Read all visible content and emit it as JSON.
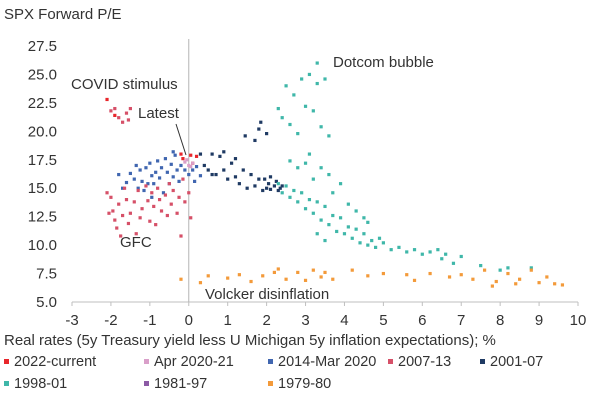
{
  "chart_data": {
    "type": "scatter",
    "title": "SPX Forward P/E",
    "xlabel": "Real rates (5y Treasury yield less U Michigan 5y inflation expectations); %",
    "ylabel": "",
    "xlim": [
      -3,
      10
    ],
    "ylim": [
      5.0,
      27.5
    ],
    "x_ticks": [
      "-3",
      "-2",
      "-1",
      "0",
      "1",
      "2",
      "3",
      "4",
      "5",
      "6",
      "7",
      "8",
      "9",
      "10"
    ],
    "y_ticks": [
      "5.0",
      "7.5",
      "10.0",
      "12.5",
      "15.0",
      "17.5",
      "20.0",
      "22.5",
      "25.0",
      "27.5"
    ],
    "grid": false,
    "legend_position": "bottom",
    "annotations": {
      "dotcom": "Dotcom bubble",
      "covid": "COVID stimulus",
      "latest": "Latest",
      "gfc": "GFC",
      "volcker": "Volcker disinflation"
    },
    "series": [
      {
        "name": "2022-current",
        "color": "#e8262b",
        "values": [
          [
            -2.1,
            22.8
          ],
          [
            -1.9,
            21.4
          ],
          [
            -0.2,
            18.0
          ],
          [
            -0.15,
            17.6
          ],
          [
            0.05,
            17.9
          ],
          [
            0.1,
            17.2
          ],
          [
            0.2,
            17.8
          ]
        ]
      },
      {
        "name": "Apr 2020-21",
        "color": "#d99fc9",
        "values": [
          [
            0.0,
            17.0
          ],
          [
            -0.1,
            17.3
          ],
          [
            0.05,
            16.9
          ],
          [
            -0.05,
            17.5
          ],
          [
            0.1,
            17.2
          ]
        ]
      },
      {
        "name": "2014-Mar 2020",
        "color": "#4066b0",
        "values": [
          [
            -1.6,
            15.5
          ],
          [
            -1.5,
            16.3
          ],
          [
            -1.4,
            15.8
          ],
          [
            -1.35,
            17.0
          ],
          [
            -1.3,
            15.0
          ],
          [
            -1.25,
            16.6
          ],
          [
            -1.2,
            15.6
          ],
          [
            -1.1,
            16.8
          ],
          [
            -1.05,
            15.4
          ],
          [
            -1.0,
            17.2
          ],
          [
            -0.95,
            16.1
          ],
          [
            -0.9,
            15.4
          ],
          [
            -0.85,
            16.4
          ],
          [
            -0.8,
            17.4
          ],
          [
            -0.75,
            15.9
          ],
          [
            -0.7,
            16.8
          ],
          [
            -0.6,
            17.6
          ],
          [
            -0.55,
            16.4
          ],
          [
            -0.5,
            15.4
          ],
          [
            -0.45,
            17.1
          ],
          [
            -0.4,
            16.0
          ],
          [
            -0.35,
            17.9
          ],
          [
            -0.3,
            16.6
          ],
          [
            -0.25,
            15.6
          ],
          [
            -0.2,
            17.0
          ],
          [
            -0.1,
            16.6
          ],
          [
            0.0,
            16.2
          ],
          [
            0.1,
            16.6
          ],
          [
            0.15,
            15.6
          ],
          [
            0.2,
            16.9
          ],
          [
            0.3,
            16.1
          ],
          [
            -1.7,
            15.0
          ],
          [
            -1.8,
            16.2
          ],
          [
            -1.15,
            14.8
          ],
          [
            -0.65,
            14.6
          ],
          [
            -0.95,
            14.2
          ],
          [
            -0.4,
            18.2
          ]
        ]
      },
      {
        "name": "2007-13",
        "color": "#d65068",
        "values": [
          [
            -2.0,
            21.8
          ],
          [
            -1.9,
            22.0
          ],
          [
            -1.8,
            21.2
          ],
          [
            -1.7,
            20.8
          ],
          [
            -1.6,
            21.6
          ],
          [
            -1.55,
            21.0
          ],
          [
            -1.5,
            22.0
          ],
          [
            -2.05,
            12.8
          ],
          [
            -2.0,
            14.2
          ],
          [
            -1.95,
            13.0
          ],
          [
            -1.9,
            12.2
          ],
          [
            -1.85,
            11.5
          ],
          [
            -1.8,
            13.6
          ],
          [
            -1.75,
            10.8
          ],
          [
            -1.7,
            12.6
          ],
          [
            -1.6,
            14.0
          ],
          [
            -1.55,
            11.9
          ],
          [
            -1.5,
            12.8
          ],
          [
            -1.4,
            13.8
          ],
          [
            -1.35,
            11.0
          ],
          [
            -1.3,
            14.8
          ],
          [
            -1.25,
            12.4
          ],
          [
            -1.2,
            13.2
          ],
          [
            -1.1,
            15.2
          ],
          [
            -1.05,
            13.9
          ],
          [
            -1.0,
            12.1
          ],
          [
            -0.95,
            14.6
          ],
          [
            -0.9,
            13.4
          ],
          [
            -0.85,
            11.8
          ],
          [
            -0.8,
            15.0
          ],
          [
            -0.75,
            14.0
          ],
          [
            -0.7,
            13.0
          ],
          [
            -0.6,
            14.4
          ],
          [
            -0.55,
            12.6
          ],
          [
            -0.5,
            15.4
          ],
          [
            -0.45,
            13.6
          ],
          [
            -0.4,
            14.8
          ],
          [
            -0.3,
            12.8
          ],
          [
            -0.25,
            14.2
          ],
          [
            -0.2,
            10.8
          ],
          [
            -0.1,
            13.8
          ],
          [
            0.0,
            14.6
          ],
          [
            0.05,
            12.4
          ],
          [
            -0.15,
            15.8
          ],
          [
            -1.65,
            15.0
          ],
          [
            -2.1,
            14.6
          ]
        ]
      },
      {
        "name": "2001-07",
        "color": "#1f3a63",
        "values": [
          [
            0.3,
            18.0
          ],
          [
            0.4,
            17.0
          ],
          [
            0.5,
            16.6
          ],
          [
            0.6,
            18.0
          ],
          [
            0.7,
            16.2
          ],
          [
            0.8,
            17.8
          ],
          [
            0.9,
            16.6
          ],
          [
            1.0,
            15.8
          ],
          [
            1.1,
            17.2
          ],
          [
            1.2,
            16.0
          ],
          [
            1.3,
            15.4
          ],
          [
            1.4,
            16.6
          ],
          [
            1.45,
            19.6
          ],
          [
            1.5,
            15.0
          ],
          [
            1.6,
            16.2
          ],
          [
            1.7,
            15.2
          ],
          [
            1.8,
            15.8
          ],
          [
            1.9,
            14.8
          ],
          [
            2.0,
            15.0
          ],
          [
            2.05,
            15.4
          ],
          [
            2.1,
            14.9
          ],
          [
            2.2,
            15.2
          ],
          [
            2.3,
            14.8
          ],
          [
            2.35,
            15.0
          ],
          [
            2.4,
            15.2
          ],
          [
            1.7,
            19.2
          ],
          [
            1.8,
            20.2
          ],
          [
            1.85,
            20.8
          ],
          [
            2.0,
            19.8
          ],
          [
            1.2,
            17.6
          ],
          [
            0.9,
            18.2
          ],
          [
            0.6,
            16.2
          ],
          [
            2.1,
            16.0
          ],
          [
            2.25,
            15.6
          ],
          [
            1.95,
            15.8
          ]
        ]
      },
      {
        "name": "1998-01",
        "color": "#3fb7a9",
        "values": [
          [
            2.3,
            15.4
          ],
          [
            2.4,
            14.6
          ],
          [
            2.5,
            15.2
          ],
          [
            2.6,
            14.2
          ],
          [
            2.7,
            14.8
          ],
          [
            2.8,
            13.8
          ],
          [
            2.9,
            14.6
          ],
          [
            3.0,
            13.2
          ],
          [
            3.1,
            14.0
          ],
          [
            3.2,
            12.8
          ],
          [
            3.3,
            13.8
          ],
          [
            3.4,
            12.2
          ],
          [
            3.5,
            13.4
          ],
          [
            3.6,
            11.8
          ],
          [
            3.7,
            12.6
          ],
          [
            3.8,
            11.2
          ],
          [
            3.9,
            12.4
          ],
          [
            4.0,
            11.0
          ],
          [
            4.1,
            11.6
          ],
          [
            4.2,
            10.6
          ],
          [
            4.3,
            11.4
          ],
          [
            4.4,
            10.2
          ],
          [
            4.5,
            11.0
          ],
          [
            4.6,
            10.0
          ],
          [
            4.7,
            10.4
          ],
          [
            4.8,
            9.8
          ],
          [
            4.9,
            10.6
          ],
          [
            5.0,
            10.2
          ],
          [
            5.2,
            9.6
          ],
          [
            5.4,
            9.8
          ],
          [
            5.6,
            9.4
          ],
          [
            5.8,
            9.6
          ],
          [
            6.0,
            9.2
          ],
          [
            6.2,
            9.4
          ],
          [
            6.4,
            9.6
          ],
          [
            6.5,
            8.8
          ],
          [
            6.6,
            9.2
          ],
          [
            6.8,
            8.4
          ],
          [
            7.0,
            9.0
          ],
          [
            7.5,
            8.2
          ],
          [
            8.0,
            7.8
          ],
          [
            8.2,
            8.0
          ],
          [
            8.8,
            8.0
          ],
          [
            2.3,
            22.0
          ],
          [
            2.4,
            21.2
          ],
          [
            2.5,
            24.0
          ],
          [
            2.6,
            20.6
          ],
          [
            2.7,
            23.2
          ],
          [
            2.8,
            19.8
          ],
          [
            2.9,
            24.6
          ],
          [
            3.0,
            22.2
          ],
          [
            3.1,
            25.0
          ],
          [
            3.2,
            21.8
          ],
          [
            3.3,
            24.2
          ],
          [
            3.4,
            20.4
          ],
          [
            3.5,
            24.6
          ],
          [
            3.6,
            19.6
          ],
          [
            3.3,
            26.0
          ],
          [
            3.1,
            18.0
          ],
          [
            3.2,
            15.8
          ],
          [
            3.4,
            16.8
          ],
          [
            3.6,
            16.2
          ],
          [
            3.7,
            14.6
          ],
          [
            3.9,
            15.4
          ],
          [
            4.1,
            13.6
          ],
          [
            4.3,
            13.0
          ],
          [
            4.5,
            12.4
          ],
          [
            4.6,
            12.0
          ],
          [
            3.3,
            11.0
          ],
          [
            3.5,
            10.4
          ],
          [
            3.0,
            17.2
          ],
          [
            2.8,
            16.8
          ],
          [
            2.6,
            17.4
          ]
        ]
      },
      {
        "name": "1981-97",
        "color": "#8c5aa5",
        "values": []
      },
      {
        "name": "1979-80",
        "color": "#f39a3a",
        "values": [
          [
            -0.2,
            7.0
          ],
          [
            0.3,
            6.7
          ],
          [
            0.5,
            7.3
          ],
          [
            1.0,
            7.1
          ],
          [
            1.3,
            7.4
          ],
          [
            1.6,
            6.8
          ],
          [
            1.9,
            7.3
          ],
          [
            2.2,
            7.6
          ],
          [
            2.3,
            7.9
          ],
          [
            2.5,
            7.0
          ],
          [
            2.8,
            7.6
          ],
          [
            3.0,
            6.9
          ],
          [
            3.2,
            7.8
          ],
          [
            3.4,
            7.2
          ],
          [
            3.5,
            7.6
          ],
          [
            3.7,
            7.0
          ],
          [
            4.2,
            7.8
          ],
          [
            4.6,
            7.3
          ],
          [
            5.0,
            7.5
          ],
          [
            5.6,
            7.4
          ],
          [
            5.8,
            6.9
          ],
          [
            6.2,
            7.5
          ],
          [
            6.7,
            7.2
          ],
          [
            7.0,
            7.4
          ],
          [
            7.3,
            7.0
          ],
          [
            7.6,
            7.8
          ],
          [
            7.9,
            6.8
          ],
          [
            8.2,
            7.5
          ],
          [
            8.5,
            7.0
          ],
          [
            8.8,
            7.8
          ],
          [
            9.0,
            6.7
          ],
          [
            9.2,
            7.2
          ],
          [
            9.4,
            6.6
          ],
          [
            9.6,
            6.5
          ],
          [
            7.8,
            6.4
          ],
          [
            8.4,
            6.6
          ]
        ]
      }
    ]
  }
}
